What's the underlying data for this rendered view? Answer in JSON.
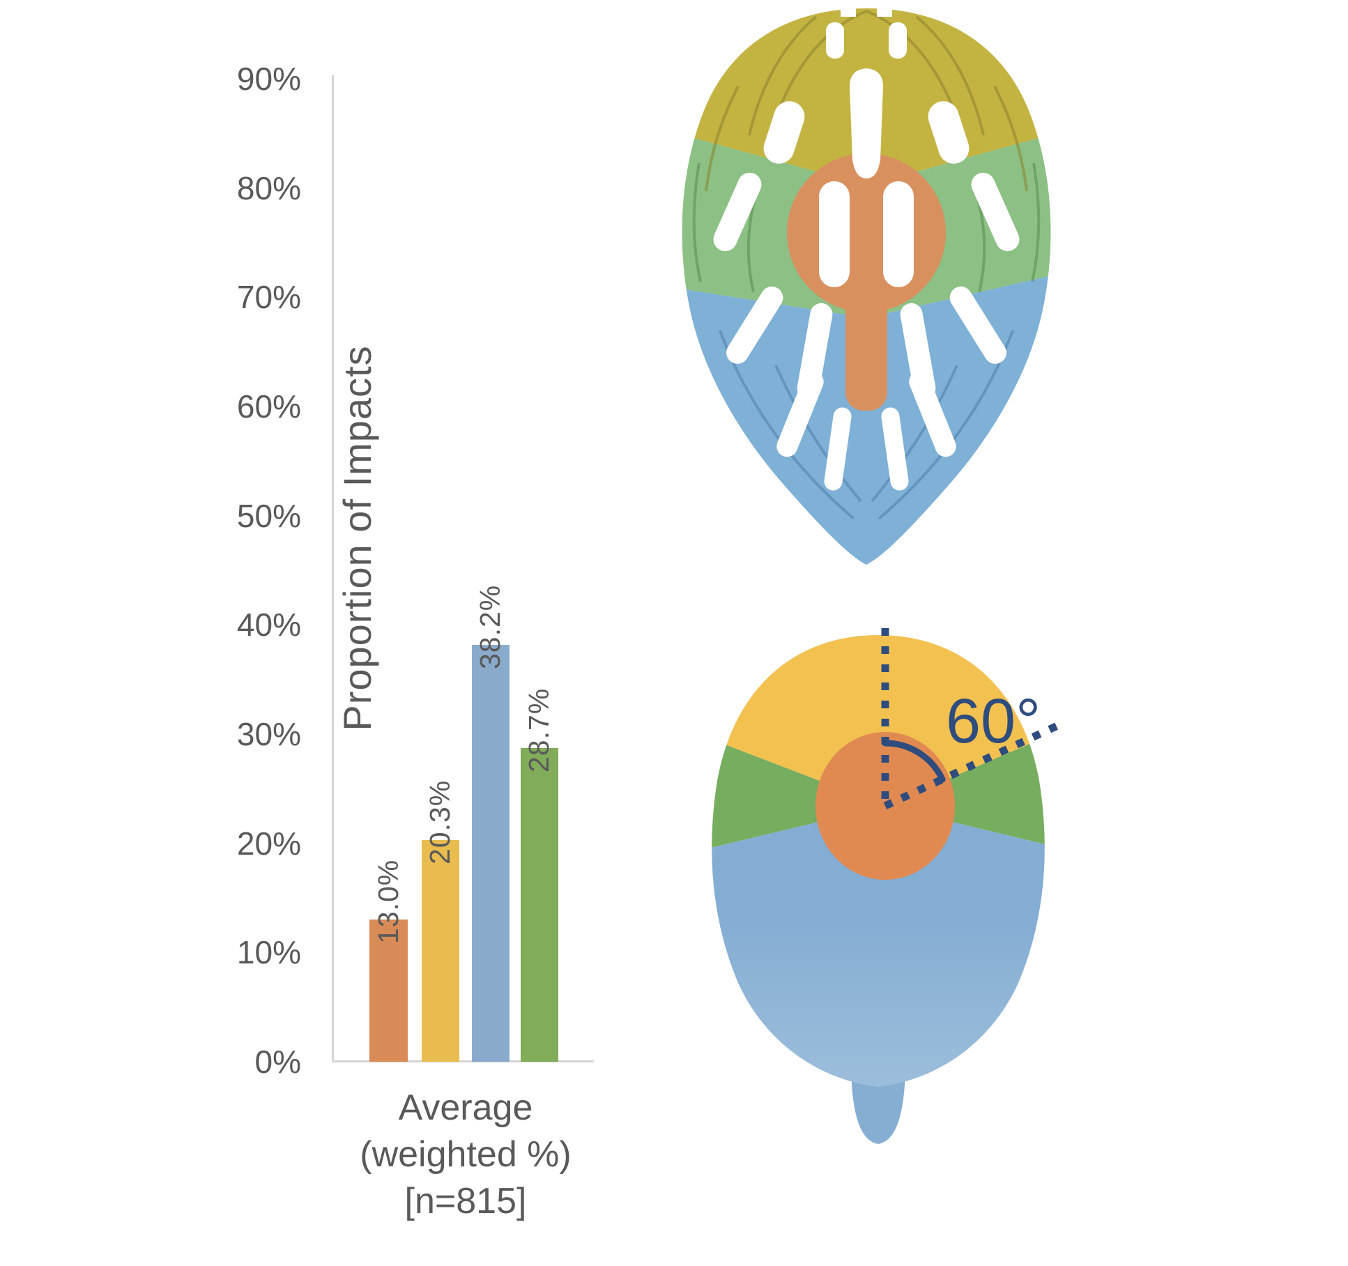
{
  "chart_data": {
    "type": "bar",
    "title": "",
    "categories": [
      "orange",
      "yellow",
      "blue",
      "green"
    ],
    "values": [
      13.0,
      20.3,
      38.2,
      28.7
    ],
    "value_labels": [
      "13.0%",
      "20.3%",
      "38.2%",
      "28.7%"
    ],
    "bar_colors": [
      "#D98B57",
      "#E8BC4F",
      "#89AACB",
      "#81AC59"
    ],
    "ylabel": "Proportion of Impacts",
    "xlabel": "Average (weighted %) [n=815]",
    "xlabel_lines": [
      "Average",
      "(weighted %)",
      "[n=815]"
    ],
    "yticks": [
      "90%",
      "80%",
      "70%",
      "60%",
      "50%",
      "40%",
      "30%",
      "20%",
      "10%",
      "0%"
    ],
    "ylim": [
      0,
      90
    ],
    "grid": false,
    "legend": false,
    "axis_color": "#D4D4D4",
    "text_color": "#595959"
  },
  "figure": {
    "helmet": {
      "description": "bicycle-helmet-top-view-with-colored-impact-regions",
      "regions": [
        {
          "name": "front",
          "color": "#C3B442"
        },
        {
          "name": "side",
          "color": "#8CC084"
        },
        {
          "name": "rear",
          "color": "#7FB0D6"
        },
        {
          "name": "top",
          "color": "#D8905F"
        }
      ]
    },
    "head": {
      "description": "head-top-view-with-colored-impact-regions",
      "angle_label": "60°",
      "annotation_color": "#2E4C7D",
      "regions": [
        {
          "name": "front",
          "color": "#F2C150"
        },
        {
          "name": "side",
          "color": "#77AD5F"
        },
        {
          "name": "rear",
          "color": "#84ADD3"
        },
        {
          "name": "top",
          "color": "#E08A52"
        }
      ]
    }
  }
}
